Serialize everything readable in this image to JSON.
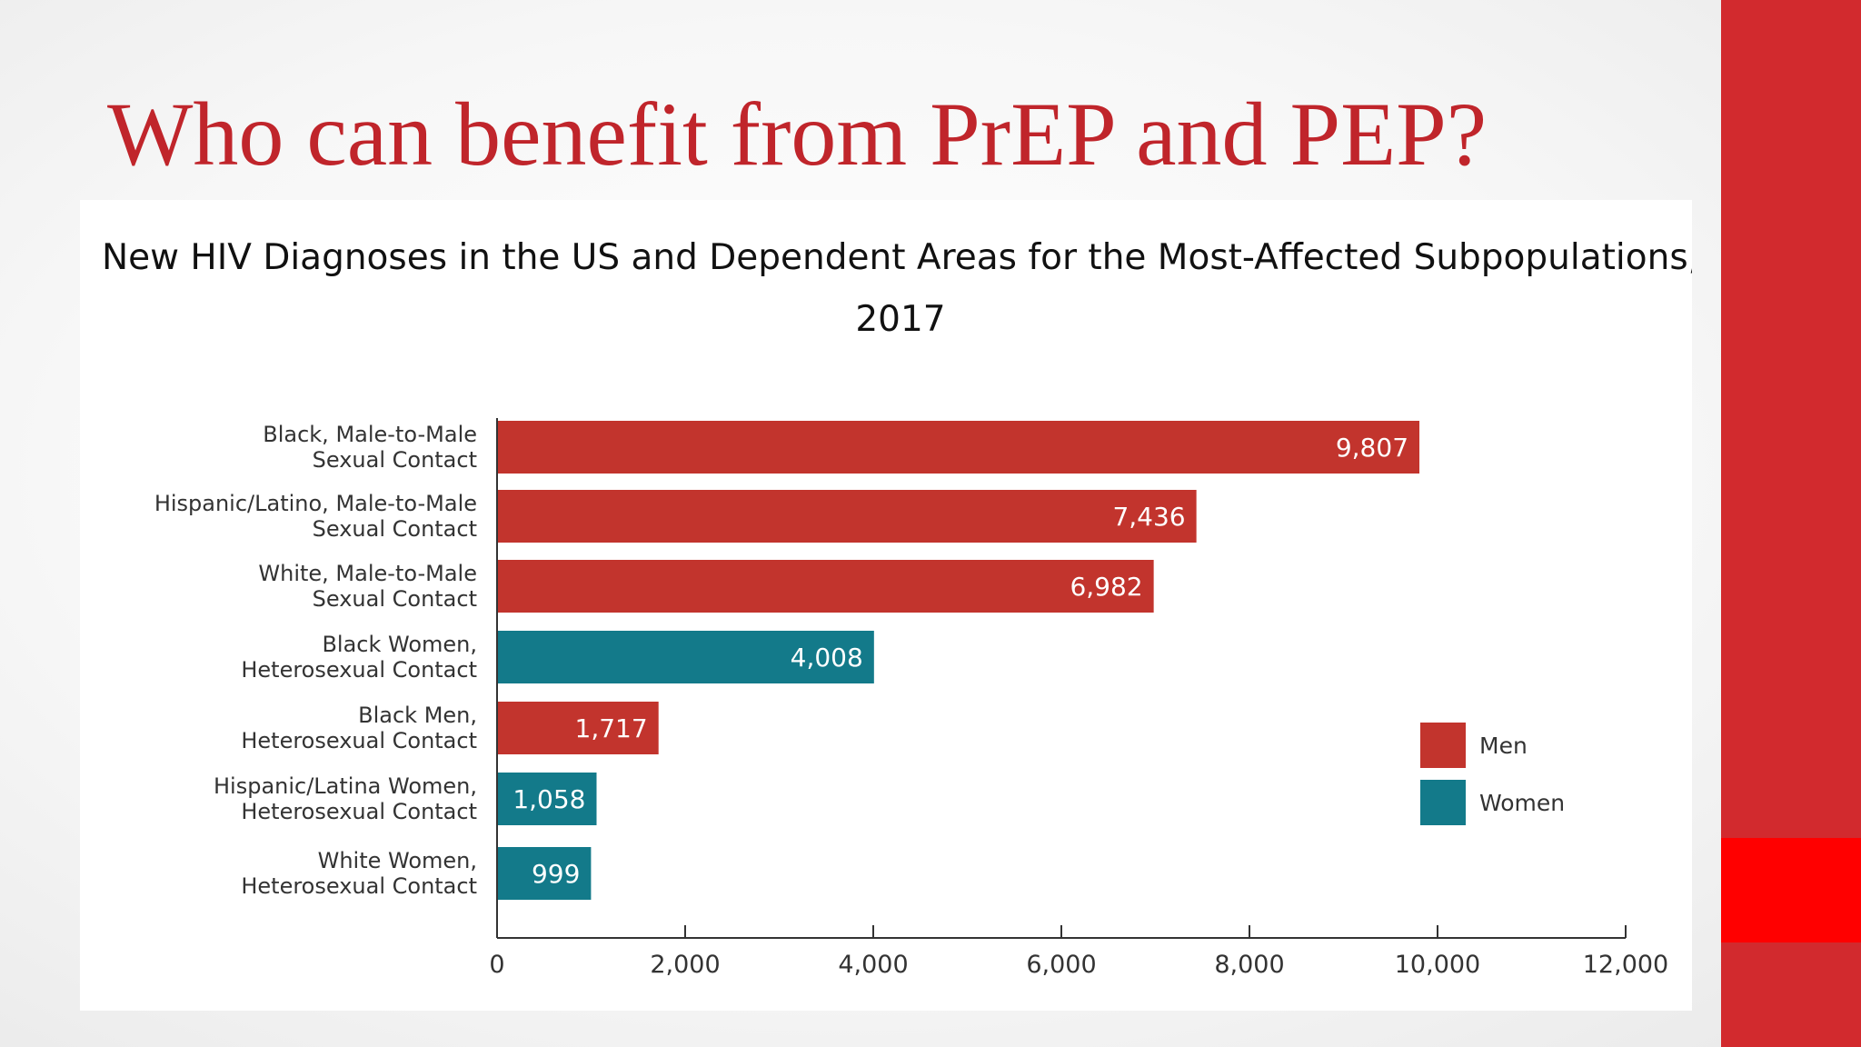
{
  "slide": {
    "title": "Who can benefit from PrEP and PEP?"
  },
  "colors": {
    "title_red": "#c0252b",
    "side_bar_red": "#d22a2e",
    "side_bar_accent": "#ff0000",
    "men": "#c2342d",
    "women": "#137a8a"
  },
  "chart_data": {
    "type": "bar",
    "orientation": "horizontal",
    "title": "New HIV Diagnoses in the US and Dependent Areas for the Most-Affected Subpopulations,",
    "subtitle": "2017",
    "categories": [
      [
        "Black, Male-to-Male",
        "Sexual Contact"
      ],
      [
        "Hispanic/Latino, Male-to-Male",
        "Sexual Contact"
      ],
      [
        "White, Male-to-Male",
        "Sexual Contact"
      ],
      [
        "Black Women,",
        "Heterosexual Contact"
      ],
      [
        "Black Men,",
        "Heterosexual Contact"
      ],
      [
        "Hispanic/Latina Women,",
        "Heterosexual Contact"
      ],
      [
        "White Women,",
        "Heterosexual Contact"
      ]
    ],
    "values": [
      9807,
      7436,
      6982,
      4008,
      1717,
      1058,
      999
    ],
    "value_labels": [
      "9,807",
      "7,436",
      "6,982",
      "4,008",
      "1,717",
      "1,058",
      "999"
    ],
    "groups": [
      "Men",
      "Men",
      "Men",
      "Women",
      "Men",
      "Women",
      "Women"
    ],
    "legend": [
      {
        "name": "Men",
        "color": "#c2342d"
      },
      {
        "name": "Women",
        "color": "#137a8a"
      }
    ],
    "legend_position": "right",
    "xlim": [
      0,
      12000
    ],
    "ticks": [
      0,
      2000,
      4000,
      6000,
      8000,
      10000,
      12000
    ],
    "tick_labels": [
      "0",
      "2,000",
      "4,000",
      "6,000",
      "8,000",
      "10,000",
      "12,000"
    ],
    "xlabel": "",
    "ylabel": "",
    "grid": false
  }
}
